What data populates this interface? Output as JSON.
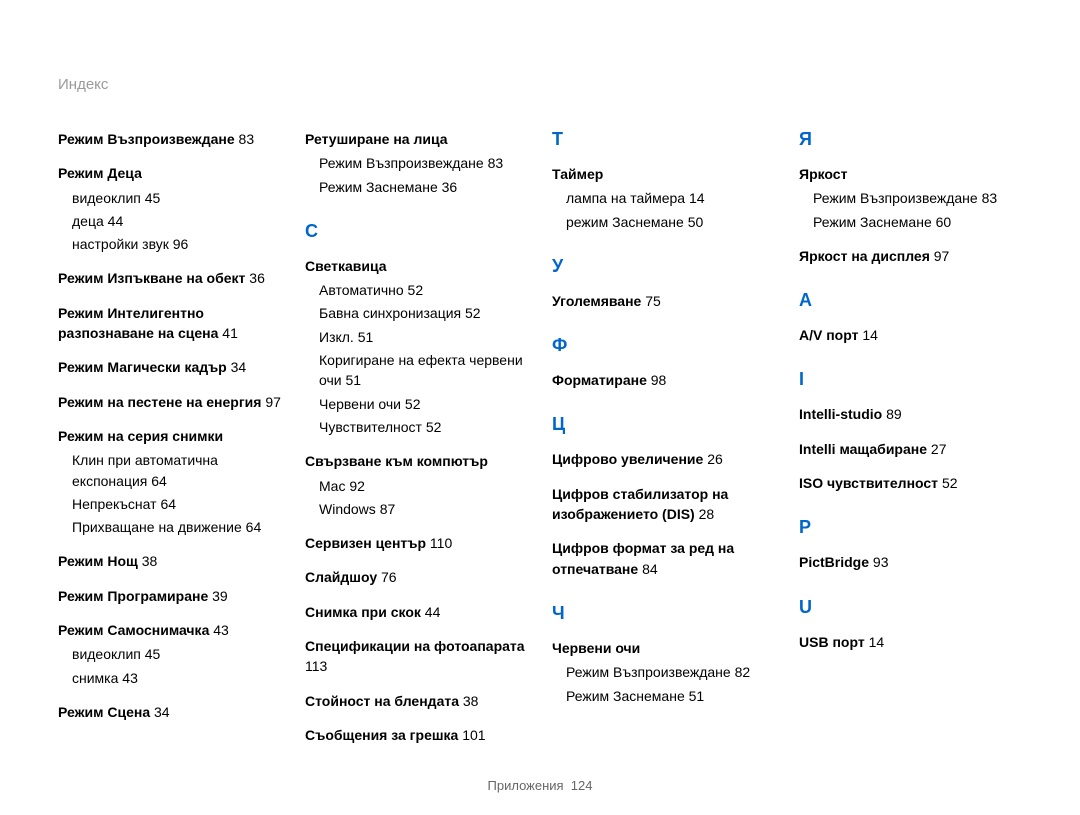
{
  "header": "Индекс",
  "footer_label": "Приложения",
  "footer_page": "124",
  "col1": [
    {
      "type": "entry",
      "text": "Режим Възпроизвеждане",
      "page": "83"
    },
    {
      "type": "group",
      "title": "Режим Деца",
      "subs": [
        {
          "text": "видеоклип",
          "page": "45"
        },
        {
          "text": "деца",
          "page": "44"
        },
        {
          "text": "настройки звук",
          "page": "96"
        }
      ]
    },
    {
      "type": "entry",
      "text": "Режим Изпъкване на обект",
      "page": "36"
    },
    {
      "type": "entry",
      "text": "Режим Интелигентно разпознаване на сцена",
      "page": "41"
    },
    {
      "type": "entry",
      "text": "Режим Магически кадър",
      "page": "34"
    },
    {
      "type": "entry",
      "text": "Режим на пестене на енергия",
      "page": "97"
    },
    {
      "type": "group",
      "title": "Режим на серия снимки",
      "subs": [
        {
          "text": "Клин при автоматична експонация",
          "page": "64"
        },
        {
          "text": "Непрекъснат",
          "page": "64"
        },
        {
          "text": "Прихващане на движение",
          "page": "64"
        }
      ]
    },
    {
      "type": "entry",
      "text": "Режим Нощ",
      "page": "38"
    },
    {
      "type": "entry",
      "text": "Режим Програмиране",
      "page": "39"
    },
    {
      "type": "group",
      "title": "Режим Самоснимачка",
      "page": "43",
      "subs": [
        {
          "text": "видеоклип",
          "page": "45"
        },
        {
          "text": "снимка",
          "page": "43"
        }
      ]
    },
    {
      "type": "entry",
      "text": "Режим Сцена",
      "page": "34"
    }
  ],
  "col2": [
    {
      "type": "group",
      "title": "Ретуширане на лица",
      "subs": [
        {
          "text": "Режим Възпроизвеждане",
          "page": "83"
        },
        {
          "text": "Режим Заснемане",
          "page": "36"
        }
      ]
    },
    {
      "type": "letter",
      "text": "С"
    },
    {
      "type": "group",
      "title": "Светкавица",
      "subs": [
        {
          "text": "Автоматично",
          "page": "52"
        },
        {
          "text": "Бавна синхронизация",
          "page": "52"
        },
        {
          "text": "Изкл.",
          "page": "51"
        },
        {
          "text": "Коригиране на ефекта червени очи",
          "page": "51"
        },
        {
          "text": "Червени очи",
          "page": "52"
        },
        {
          "text": "Чувствителност",
          "page": "52"
        }
      ]
    },
    {
      "type": "group",
      "title": "Свързване към компютър",
      "subs": [
        {
          "text": "Mac",
          "page": "92"
        },
        {
          "text": "Windows",
          "page": "87"
        }
      ]
    },
    {
      "type": "entry",
      "text": "Сервизен център",
      "page": "110"
    },
    {
      "type": "entry",
      "text": "Слайдшоу",
      "page": "76"
    },
    {
      "type": "entry",
      "text": "Снимка при скок",
      "page": "44"
    },
    {
      "type": "entry",
      "text": "Спецификации на фотоапарата",
      "page": "113"
    },
    {
      "type": "entry",
      "text": "Стойност на блендата",
      "page": "38"
    },
    {
      "type": "entry",
      "text": "Съобщения за грешка",
      "page": "101"
    }
  ],
  "col3": [
    {
      "type": "letter",
      "text": "Т"
    },
    {
      "type": "group",
      "title": "Таймер",
      "subs": [
        {
          "text": "лампа на таймера",
          "page": "14"
        },
        {
          "text": "режим Заснемане",
          "page": "50"
        }
      ]
    },
    {
      "type": "letter",
      "text": "У"
    },
    {
      "type": "entry",
      "text": "Уголемяване",
      "page": "75"
    },
    {
      "type": "letter",
      "text": "Ф"
    },
    {
      "type": "entry",
      "text": "Форматиране",
      "page": "98"
    },
    {
      "type": "letter",
      "text": "Ц"
    },
    {
      "type": "entry",
      "text": "Цифрово увеличение",
      "page": "26"
    },
    {
      "type": "entry",
      "text": "Цифров стабилизатор на изображението (DIS)",
      "page": "28"
    },
    {
      "type": "entry",
      "text": "Цифров формат за ред на отпечатване",
      "page": "84"
    },
    {
      "type": "letter",
      "text": "Ч"
    },
    {
      "type": "group",
      "title": "Червени очи",
      "subs": [
        {
          "text": "Режим Възпроизвеждане",
          "page": "82"
        },
        {
          "text": "Режим Заснемане",
          "page": "51"
        }
      ]
    }
  ],
  "col4": [
    {
      "type": "letter",
      "text": "Я"
    },
    {
      "type": "group",
      "title": "Яркост",
      "subs": [
        {
          "text": "Режим Възпроизвеждане",
          "page": "83"
        },
        {
          "text": "Режим Заснемане",
          "page": "60"
        }
      ]
    },
    {
      "type": "entry",
      "text": "Яркост на дисплея",
      "page": "97"
    },
    {
      "type": "letter",
      "text": "A"
    },
    {
      "type": "entry",
      "text": "A/V порт",
      "page": "14"
    },
    {
      "type": "letter",
      "text": "I"
    },
    {
      "type": "entry",
      "text": "Intelli-studio",
      "page": "89"
    },
    {
      "type": "entry",
      "text": "Intelli мащабиране",
      "page": "27"
    },
    {
      "type": "entry",
      "text": "ISO чувствителност",
      "page": "52"
    },
    {
      "type": "letter",
      "text": "P"
    },
    {
      "type": "entry",
      "text": "PictBridge",
      "page": "93"
    },
    {
      "type": "letter",
      "text": "U"
    },
    {
      "type": "entry",
      "text": "USB порт",
      "page": "14"
    }
  ]
}
